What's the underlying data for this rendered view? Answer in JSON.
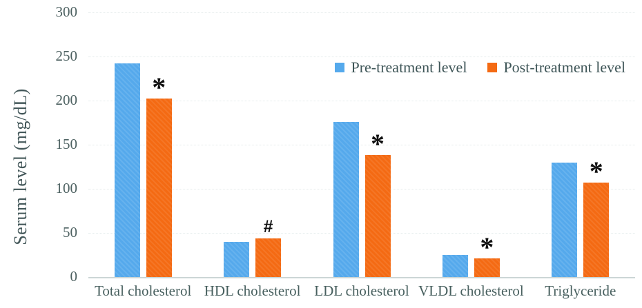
{
  "chart_data": {
    "type": "bar",
    "title": "",
    "xlabel": "",
    "ylabel": "Serum level (mg/dL)",
    "ylim": [
      0,
      300
    ],
    "yticks": [
      0,
      50,
      100,
      150,
      200,
      250,
      300
    ],
    "grid": "horizontal-dotted-faint",
    "legend_position": "top-right-inside",
    "categories": [
      "Total cholesterol",
      "HDL cholesterol",
      "LDL cholesterol",
      "VLDL cholesterol",
      "Triglyceride"
    ],
    "series": [
      {
        "name": "Pre-treatment level",
        "color": "#55a9ec",
        "values": [
          242,
          40,
          176,
          25,
          130
        ]
      },
      {
        "name": "Post-treatment level",
        "color": "#f46a13",
        "values": [
          202,
          44,
          138,
          21,
          107
        ]
      }
    ],
    "significance_markers": {
      "attached_to_series": "Post-treatment level",
      "symbols": [
        "*",
        "#",
        "*",
        "*",
        "*"
      ]
    }
  },
  "colors": {
    "pre_bar": "#55a9ec",
    "post_bar": "#f46a13",
    "axis_text": "#4d6161",
    "baseline": "#ccd6d6",
    "marker_text": "#101010",
    "background": "#ffffff"
  }
}
